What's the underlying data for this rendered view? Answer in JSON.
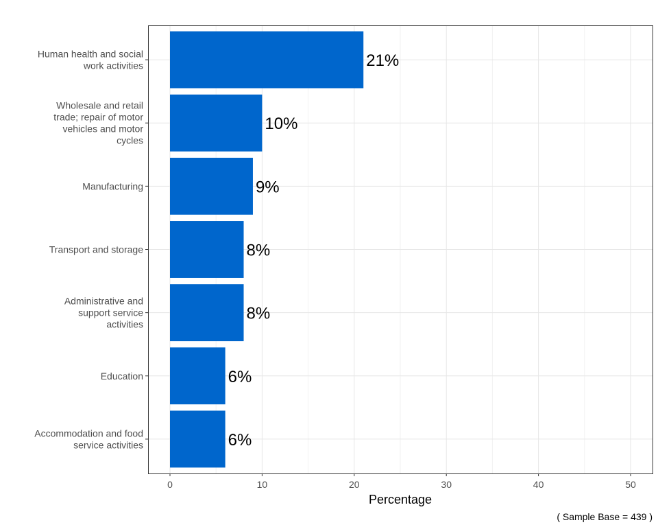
{
  "chart_data": {
    "type": "bar",
    "orientation": "horizontal",
    "categories": [
      "Human health and social work activities",
      "Wholesale and retail trade; repair of motor vehicles and motor cycles",
      "Manufacturing",
      "Transport and storage",
      "Administrative and support service activities",
      "Education",
      "Accommodation and food service activities"
    ],
    "category_lines": [
      [
        "Human health and social",
        "work activities"
      ],
      [
        "Wholesale and retail",
        "trade; repair of motor",
        "vehicles and motor",
        "cycles"
      ],
      [
        "Manufacturing"
      ],
      [
        "Transport and storage"
      ],
      [
        "Administrative and",
        "support service",
        "activities"
      ],
      [
        "Education"
      ],
      [
        "Accommodation and food",
        "service activities"
      ]
    ],
    "values": [
      21,
      10,
      9,
      8,
      8,
      6,
      6
    ],
    "data_labels": [
      "21%",
      "10%",
      "9%",
      "8%",
      "8%",
      "6%",
      "6%"
    ],
    "xlabel": "Percentage",
    "ylabel": "",
    "xlim": [
      0,
      50
    ],
    "xticks": [
      0,
      10,
      20,
      30,
      40,
      50
    ],
    "grid": true,
    "bar_color": "#0066CC",
    "caption": "( Sample Base =  439 )"
  }
}
